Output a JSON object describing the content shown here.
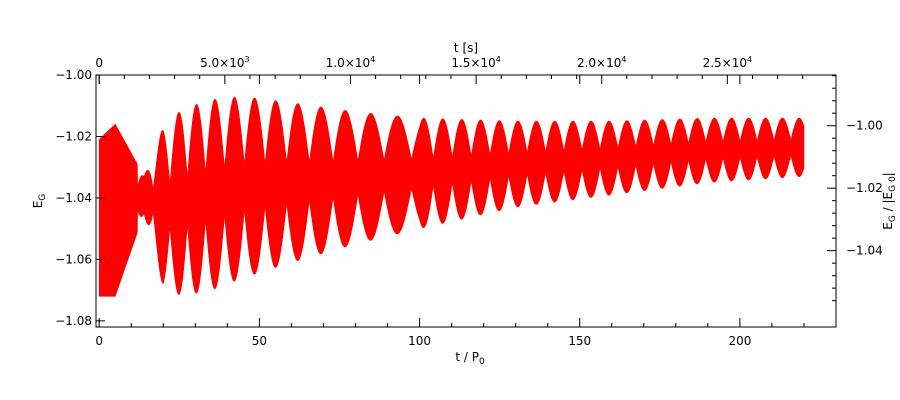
{
  "chart_data": {
    "type": "line",
    "title": "",
    "xlabel_bottom": {
      "main": "t / P",
      "sub": "0"
    },
    "xlabel_top": "t [s]",
    "ylabel_left": {
      "main": "E",
      "sub": "G"
    },
    "ylabel_right": {
      "main": "E",
      "sub": "G",
      "rest": " / |E",
      "sub2": "G 0",
      "end": "|"
    },
    "xlim": [
      -1,
      230
    ],
    "ylim": [
      -1.082,
      -1.0
    ],
    "x_ticks_bottom": [
      0,
      50,
      100,
      150,
      200
    ],
    "x_tick_labels_bottom": [
      "0",
      "50",
      "100",
      "150",
      "200"
    ],
    "x_ticks_top_seconds": [
      0,
      5000,
      10000,
      15000,
      20000,
      25000
    ],
    "x_tick_labels_top": [
      {
        "mant": "0",
        "exp": ""
      },
      {
        "mant": "5.0×10",
        "exp": "3"
      },
      {
        "mant": "1.0×10",
        "exp": "4"
      },
      {
        "mant": "1.5×10",
        "exp": "4"
      },
      {
        "mant": "2.0×10",
        "exp": "4"
      },
      {
        "mant": "2.5×10",
        "exp": "4"
      }
    ],
    "seconds_per_period": 127.5,
    "y_ticks_left": [
      -1.08,
      -1.06,
      -1.04,
      -1.02,
      -1.0
    ],
    "y_tick_labels_left": [
      "−1.08",
      "−1.06",
      "−1.04",
      "−1.02",
      "−1.00"
    ],
    "y_ticks_right_values": [
      -1.04,
      -1.02,
      -1.0
    ],
    "y_tick_labels_right": [
      "−1.04",
      "−1.02",
      "−1.00"
    ],
    "right_axis_scale": 1.0165,
    "series": [
      {
        "color": "#ff0000",
        "x_range": [
          0,
          220
        ],
        "oscillation_envelope": {
          "t": [
            0,
            5,
            14,
            20,
            26,
            35,
            45,
            60,
            80,
            100,
            130,
            160,
            190,
            220
          ],
          "upper": [
            -1.021,
            -1.016,
            -1.033,
            -1.017,
            -1.011,
            -1.008,
            -1.007,
            -1.009,
            -1.012,
            -1.014,
            -1.015,
            -1.015,
            -1.014,
            -1.014
          ],
          "lower": [
            -1.072,
            -1.072,
            -1.045,
            -1.069,
            -1.072,
            -1.07,
            -1.066,
            -1.061,
            -1.055,
            -1.05,
            -1.043,
            -1.039,
            -1.035,
            -1.033
          ]
        }
      }
    ],
    "grid": false,
    "legend": "none"
  }
}
